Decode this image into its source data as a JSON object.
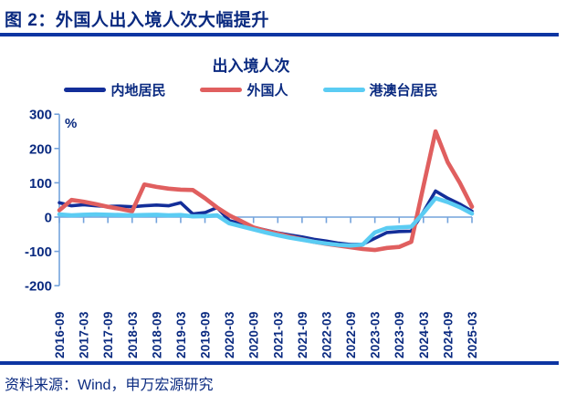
{
  "header": {
    "title": "图 2：外国人出入境人次大幅提升"
  },
  "footer": {
    "source_note": "资料来源：Wind，申万宏源研究"
  },
  "colors": {
    "text_navy": "#0a2a80",
    "rule_blue": "#0d35a2",
    "axis_blue": "#74a3dc",
    "series_mainland": "#132e99",
    "series_foreigner": "#e05f5f",
    "series_hmt": "#5bccf3"
  },
  "chart_data": {
    "type": "line",
    "title": "出入境人次",
    "ylabel": "%",
    "ylim": [
      -200,
      300
    ],
    "yticks": [
      300,
      200,
      100,
      0,
      -100,
      -200
    ],
    "grid": false,
    "legend_position": "top",
    "x": [
      "2016-09",
      "2016-12",
      "2017-03",
      "2017-06",
      "2017-09",
      "2017-12",
      "2018-03",
      "2018-06",
      "2018-09",
      "2018-12",
      "2019-03",
      "2019-06",
      "2019-09",
      "2019-12",
      "2020-03",
      "2020-06",
      "2020-09",
      "2020-12",
      "2021-03",
      "2021-06",
      "2021-09",
      "2021-12",
      "2022-03",
      "2022-06",
      "2022-09",
      "2022-12",
      "2023-03",
      "2023-06",
      "2023-09",
      "2023-12",
      "2024-03",
      "2024-06",
      "2024-09",
      "2024-12",
      "2025-03"
    ],
    "x_tick_labels": [
      "2016-09",
      "2017-03",
      "2017-09",
      "2018-03",
      "2018-09",
      "2019-03",
      "2019-09",
      "2020-03",
      "2020-09",
      "2021-03",
      "2021-09",
      "2022-03",
      "2022-09",
      "2023-03",
      "2023-09",
      "2024-03",
      "2024-09",
      "2025-03"
    ],
    "series": [
      {
        "name": "内地居民",
        "color": "#132e99",
        "values": [
          42,
          33,
          36,
          33,
          31,
          32,
          30,
          33,
          35,
          33,
          42,
          9,
          13,
          28,
          -10,
          -20,
          -30,
          -38,
          -46,
          -52,
          -58,
          -65,
          -70,
          -76,
          -80,
          -79,
          -62,
          -45,
          -42,
          -41,
          15,
          76,
          55,
          38,
          17
        ]
      },
      {
        "name": "外国人",
        "color": "#e05f5f",
        "values": [
          20,
          50,
          45,
          38,
          30,
          24,
          17,
          95,
          88,
          83,
          80,
          79,
          55,
          28,
          5,
          -12,
          -30,
          -40,
          -48,
          -57,
          -65,
          -72,
          -78,
          -83,
          -88,
          -93,
          -96,
          -90,
          -87,
          -72,
          90,
          250,
          160,
          100,
          30
        ]
      },
      {
        "name": "港澳台居民",
        "color": "#5bccf3",
        "values": [
          8,
          5,
          7,
          8,
          7,
          6,
          5,
          6,
          7,
          5,
          6,
          2,
          3,
          5,
          -18,
          -27,
          -36,
          -45,
          -53,
          -60,
          -66,
          -72,
          -77,
          -81,
          -83,
          -80,
          -45,
          -32,
          -30,
          -28,
          12,
          55,
          44,
          29,
          10
        ]
      }
    ]
  }
}
